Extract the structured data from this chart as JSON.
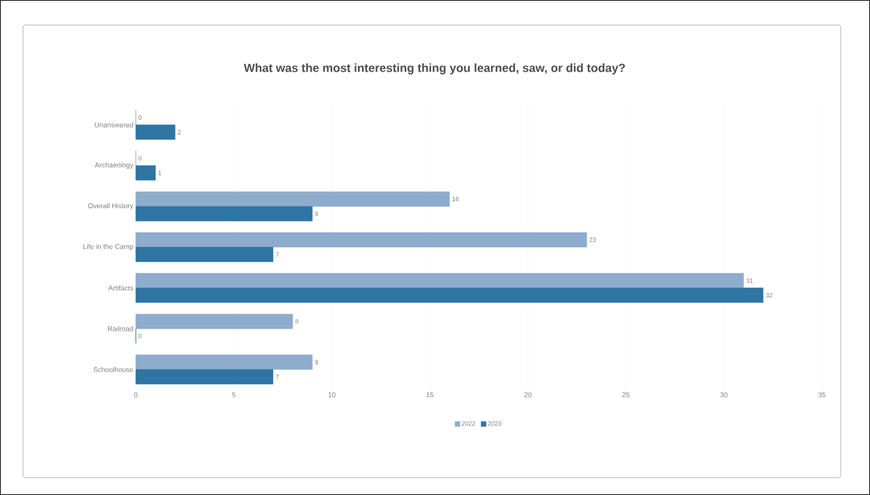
{
  "chart_data": {
    "type": "bar",
    "orientation": "horizontal",
    "title": "What was the most interesting thing you learned, saw, or did today?",
    "categories": [
      "Unanswered",
      "Archaeology",
      "Overall History",
      "Life in the Camp",
      "Artifacts",
      "Railroad",
      "Schoolhouse"
    ],
    "series": [
      {
        "name": "2022",
        "color": "#8eaccc",
        "values": [
          0,
          0,
          16,
          23,
          31,
          8,
          9
        ]
      },
      {
        "name": "2023",
        "color": "#2e75a3",
        "values": [
          2,
          1,
          9,
          7,
          32,
          0,
          7
        ]
      }
    ],
    "xlim": [
      0,
      35
    ],
    "xticks": [
      0,
      5,
      10,
      15,
      20,
      25,
      30,
      35
    ],
    "grid": "x",
    "legend": "bottom",
    "data_labels": true
  }
}
